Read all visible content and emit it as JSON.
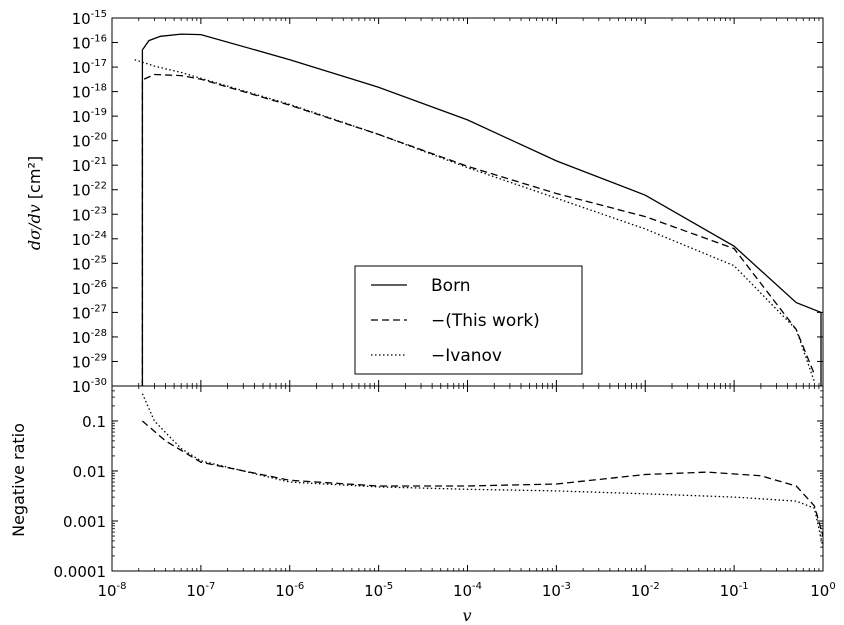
{
  "chart_data": [
    {
      "type": "line",
      "ylabel_math": "dσ/dv",
      "ylabel_unit": " [cm²]",
      "xscale": "log",
      "yscale": "log",
      "xlim": [
        1e-08,
        1
      ],
      "ylim": [
        1e-30,
        1e-15
      ],
      "legend_position": "lower-center",
      "series": [
        {
          "name": "Born",
          "style": "solid",
          "points": [
            [
              2.2e-08,
              1e-30
            ],
            [
              2.2e-08,
              5e-17
            ],
            [
              2.6e-08,
              1.2e-16
            ],
            [
              3.5e-08,
              1.8e-16
            ],
            [
              6e-08,
              2.2e-16
            ],
            [
              1e-07,
              2.1e-16
            ],
            [
              1e-06,
              2e-17
            ],
            [
              1e-05,
              1.5e-18
            ],
            [
              0.0001,
              7e-20
            ],
            [
              0.001,
              1.5e-21
            ],
            [
              0.01,
              6e-23
            ],
            [
              0.1,
              5e-25
            ],
            [
              0.5,
              2.5e-27
            ],
            [
              0.95,
              1e-27
            ],
            [
              0.95,
              1e-30
            ]
          ]
        },
        {
          "name": "−(This work)",
          "style": "dashed",
          "points": [
            [
              2.2e-08,
              1e-30
            ],
            [
              2.2e-08,
              3e-18
            ],
            [
              3e-08,
              5e-18
            ],
            [
              6e-08,
              4.5e-18
            ],
            [
              1e-07,
              3.2e-18
            ],
            [
              1e-06,
              2.8e-19
            ],
            [
              1e-05,
              1.8e-20
            ],
            [
              0.0001,
              9e-22
            ],
            [
              0.001,
              7e-23
            ],
            [
              0.01,
              8e-24
            ],
            [
              0.1,
              4e-25
            ],
            [
              0.5,
              2e-28
            ],
            [
              0.8,
              3e-30
            ]
          ]
        },
        {
          "name": "−Ivanov",
          "style": "dotted",
          "points": [
            [
              1.8e-08,
              2e-17
            ],
            [
              3e-08,
              1.1e-17
            ],
            [
              6e-08,
              6e-18
            ],
            [
              1e-07,
              3.5e-18
            ],
            [
              1e-06,
              3e-19
            ],
            [
              1e-05,
              1.8e-20
            ],
            [
              0.0001,
              8e-22
            ],
            [
              0.001,
              4.5e-23
            ],
            [
              0.01,
              2.5e-24
            ],
            [
              0.1,
              8e-26
            ],
            [
              0.5,
              2e-28
            ],
            [
              0.8,
              1.5e-30
            ]
          ]
        }
      ]
    },
    {
      "type": "line",
      "xlabel": "v",
      "ylabel": "Negative ratio",
      "xscale": "log",
      "yscale": "log",
      "xlim": [
        1e-08,
        1
      ],
      "ylim": [
        0.0001,
        0.5
      ],
      "series": [
        {
          "name": "−(This work)",
          "style": "dashed",
          "points": [
            [
              2.2e-08,
              0.1
            ],
            [
              4e-08,
              0.04
            ],
            [
              1e-07,
              0.015
            ],
            [
              1e-06,
              0.0065
            ],
            [
              1e-05,
              0.005
            ],
            [
              0.0001,
              0.005
            ],
            [
              0.001,
              0.0055
            ],
            [
              0.01,
              0.0085
            ],
            [
              0.05,
              0.0095
            ],
            [
              0.2,
              0.008
            ],
            [
              0.5,
              0.005
            ],
            [
              0.8,
              0.002
            ],
            [
              1,
              0.0005
            ]
          ]
        },
        {
          "name": "−Ivanov",
          "style": "dotted",
          "points": [
            [
              2.2e-08,
              0.35
            ],
            [
              3e-08,
              0.1
            ],
            [
              6e-08,
              0.028
            ],
            [
              1e-07,
              0.016
            ],
            [
              1e-06,
              0.006
            ],
            [
              1e-05,
              0.0048
            ],
            [
              0.0001,
              0.0043
            ],
            [
              0.001,
              0.004
            ],
            [
              0.01,
              0.0035
            ],
            [
              0.1,
              0.003
            ],
            [
              0.5,
              0.0025
            ],
            [
              0.8,
              0.0018
            ],
            [
              1,
              0.0003
            ]
          ]
        }
      ]
    }
  ],
  "x_ticks": [
    {
      "base": "10",
      "exp": "-8"
    },
    {
      "base": "10",
      "exp": "-7"
    },
    {
      "base": "10",
      "exp": "-6"
    },
    {
      "base": "10",
      "exp": "-5"
    },
    {
      "base": "10",
      "exp": "-4"
    },
    {
      "base": "10",
      "exp": "-3"
    },
    {
      "base": "10",
      "exp": "-2"
    },
    {
      "base": "10",
      "exp": "-1"
    },
    {
      "base": "10",
      "exp": "0"
    }
  ],
  "top_y_ticks": [
    {
      "base": "10",
      "exp": "-15"
    },
    {
      "base": "10",
      "exp": "-16"
    },
    {
      "base": "10",
      "exp": "-17"
    },
    {
      "base": "10",
      "exp": "-18"
    },
    {
      "base": "10",
      "exp": "-19"
    },
    {
      "base": "10",
      "exp": "-20"
    },
    {
      "base": "10",
      "exp": "-21"
    },
    {
      "base": "10",
      "exp": "-22"
    },
    {
      "base": "10",
      "exp": "-23"
    },
    {
      "base": "10",
      "exp": "-24"
    },
    {
      "base": "10",
      "exp": "-25"
    },
    {
      "base": "10",
      "exp": "-26"
    },
    {
      "base": "10",
      "exp": "-27"
    },
    {
      "base": "10",
      "exp": "-28"
    },
    {
      "base": "10",
      "exp": "-29"
    },
    {
      "base": "10",
      "exp": "-30"
    }
  ],
  "bottom_y_ticks": [
    "0.1",
    "0.01",
    "0.001",
    "0.0001"
  ]
}
